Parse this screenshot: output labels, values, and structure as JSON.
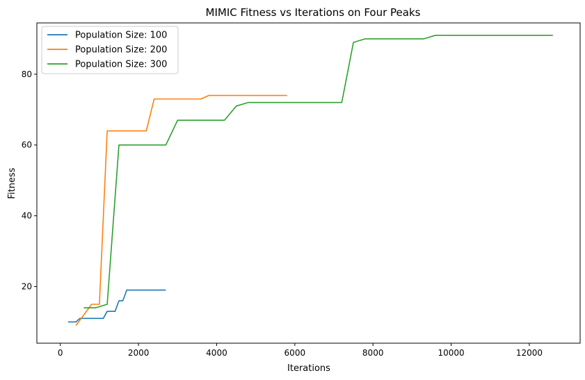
{
  "chart_data": {
    "type": "line",
    "title": "MIMIC Fitness vs Iterations on Four Peaks",
    "xlabel": "Iterations",
    "ylabel": "Fitness",
    "xlim": [
      -600,
      13300
    ],
    "ylim": [
      4,
      94.5
    ],
    "xticks": [
      0,
      2000,
      4000,
      6000,
      8000,
      10000,
      12000
    ],
    "yticks": [
      20,
      40,
      60,
      80
    ],
    "grid": false,
    "legend": "top-left",
    "series": [
      {
        "name": "Population Size: 100",
        "color": "#1f77b4",
        "points": [
          [
            200,
            10
          ],
          [
            400,
            10
          ],
          [
            500,
            11
          ],
          [
            1100,
            11
          ],
          [
            1200,
            13
          ],
          [
            1400,
            13
          ],
          [
            1500,
            16
          ],
          [
            1600,
            16
          ],
          [
            1700,
            19
          ],
          [
            2700,
            19
          ]
        ]
      },
      {
        "name": "Population Size: 200",
        "color": "#ff7f0e",
        "points": [
          [
            400,
            9
          ],
          [
            800,
            15
          ],
          [
            1000,
            15
          ],
          [
            1200,
            64
          ],
          [
            2200,
            64
          ],
          [
            2400,
            73
          ],
          [
            3600,
            73
          ],
          [
            3800,
            74
          ],
          [
            5800,
            74
          ]
        ]
      },
      {
        "name": "Population Size: 300",
        "color": "#2ca02c",
        "points": [
          [
            600,
            14
          ],
          [
            900,
            14
          ],
          [
            1200,
            15
          ],
          [
            1500,
            60
          ],
          [
            2700,
            60
          ],
          [
            3000,
            67
          ],
          [
            4200,
            67
          ],
          [
            4500,
            71
          ],
          [
            4800,
            72
          ],
          [
            7200,
            72
          ],
          [
            7500,
            89
          ],
          [
            7800,
            90
          ],
          [
            9300,
            90
          ],
          [
            9600,
            91
          ],
          [
            12600,
            91
          ]
        ]
      }
    ]
  }
}
